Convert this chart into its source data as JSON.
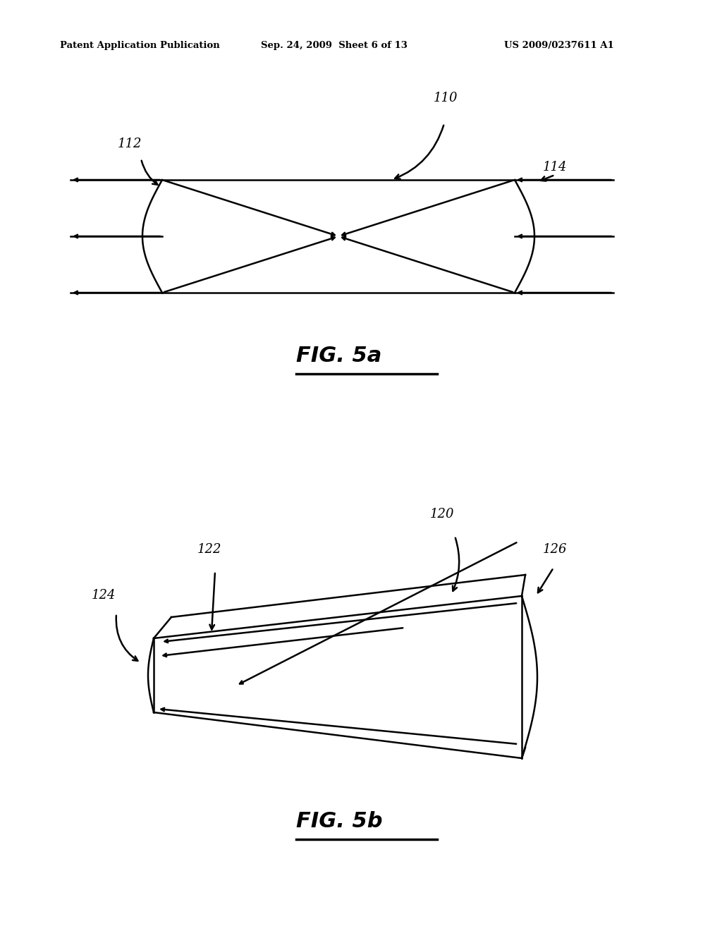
{
  "bg_color": "#ffffff",
  "header_text": "Patent Application Publication",
  "header_date": "Sep. 24, 2009  Sheet 6 of 13",
  "header_patent": "US 2009/0237611 A1",
  "fig5a_label": "FIG. 5a",
  "fig5b_label": "FIG. 5b",
  "label_110": "110",
  "label_112": "112",
  "label_114": "114",
  "label_120": "120",
  "label_122": "122",
  "label_124": "124",
  "label_126": "126",
  "line_color": "#000000",
  "line_width": 1.8
}
